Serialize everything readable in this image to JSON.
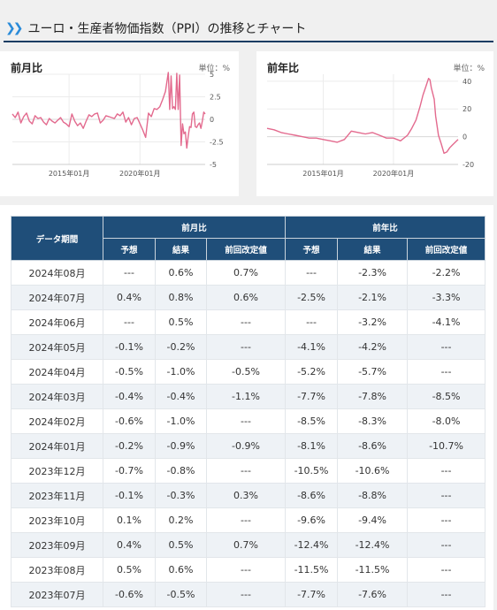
{
  "page": {
    "title": "ユーロ・生産者物価指数（PPI）の推移とチャート"
  },
  "chart_data": [
    {
      "type": "line",
      "title": "前月比",
      "unit_label": "単位：%",
      "x_tick_labels": [
        "2015年01月",
        "2020年01月"
      ],
      "x_ticks": [
        2015.0,
        2020.0
      ],
      "xlim": [
        2011.0,
        2024.6
      ],
      "ylim": [
        -5,
        5
      ],
      "y_ticks": [
        5,
        2.5,
        0,
        -2.5,
        -5
      ],
      "y_tick_labels": [
        "5",
        "2.5",
        "0",
        "-2.5",
        "-5"
      ],
      "grid": true,
      "color": "#e36a8e",
      "series": [
        {
          "x": [
            2011.0,
            2011.2,
            2011.4,
            2011.6,
            2011.8,
            2012.0,
            2012.2,
            2012.4,
            2012.6,
            2012.8,
            2013.0,
            2013.2,
            2013.4,
            2013.6,
            2013.8,
            2014.0,
            2014.2,
            2014.4,
            2014.6,
            2014.8,
            2015.0,
            2015.2,
            2015.4,
            2015.6,
            2015.8,
            2016.0,
            2016.2,
            2016.4,
            2016.6,
            2016.8,
            2017.0,
            2017.2,
            2017.4,
            2017.6,
            2017.8,
            2018.0,
            2018.2,
            2018.4,
            2018.6,
            2018.8,
            2019.0,
            2019.2,
            2019.4,
            2019.6,
            2019.8,
            2020.0,
            2020.2,
            2020.4,
            2020.6,
            2020.8,
            2021.0,
            2021.2,
            2021.4,
            2021.6,
            2021.8,
            2022.0,
            2022.1,
            2022.2,
            2022.3,
            2022.4,
            2022.5,
            2022.6,
            2022.7,
            2022.8,
            2022.9,
            2023.0,
            2023.1,
            2023.2,
            2023.3,
            2023.4,
            2023.5,
            2023.6,
            2023.7,
            2023.8,
            2023.9,
            2024.0,
            2024.1,
            2024.2,
            2024.3,
            2024.4,
            2024.5,
            2024.6
          ],
          "values": [
            0.6,
            0.2,
            0.8,
            -0.4,
            0.3,
            0.7,
            -0.2,
            -0.5,
            0.4,
            0.1,
            0.2,
            -0.3,
            -0.6,
            0.1,
            -0.2,
            -0.4,
            -0.1,
            0.2,
            -0.3,
            -0.5,
            -0.8,
            0.6,
            -0.2,
            -0.7,
            -0.4,
            -1.0,
            -0.2,
            0.5,
            0.3,
            0.6,
            0.7,
            -0.4,
            -0.1,
            0.4,
            0.3,
            0.2,
            0.1,
            0.6,
            0.4,
            0.8,
            -0.3,
            0.2,
            -0.6,
            0.1,
            0.2,
            -0.5,
            -1.2,
            -2.0,
            0.7,
            0.3,
            1.2,
            1.1,
            1.4,
            2.2,
            3.1,
            5.2,
            1.1,
            4.8,
            1.2,
            1.4,
            1.1,
            5.1,
            1.1,
            4.9,
            -2.9,
            -0.5,
            -1.6,
            -1.4,
            -3.2,
            -1.9,
            -0.8,
            -0.9,
            0.6,
            0.8,
            -0.8,
            -0.9,
            -0.6,
            -0.4,
            -1.0,
            -0.2,
            0.8,
            0.6
          ]
        }
      ]
    },
    {
      "type": "line",
      "title": "前年比",
      "unit_label": "単位：%",
      "x_tick_labels": [
        "2015年01月",
        "2020年01月"
      ],
      "x_ticks": [
        2015.0,
        2020.0
      ],
      "xlim": [
        2011.0,
        2024.6
      ],
      "ylim": [
        -20,
        45
      ],
      "y_ticks": [
        40,
        20,
        0,
        -20
      ],
      "y_tick_labels": [
        "40",
        "20",
        "0",
        "-20"
      ],
      "grid": true,
      "color": "#e36a8e",
      "series": [
        {
          "x": [
            2011.0,
            2011.5,
            2012.0,
            2012.5,
            2013.0,
            2013.5,
            2014.0,
            2014.5,
            2015.0,
            2015.5,
            2016.0,
            2016.5,
            2017.0,
            2017.5,
            2018.0,
            2018.5,
            2019.0,
            2019.5,
            2020.0,
            2020.5,
            2021.0,
            2021.3,
            2021.6,
            2021.9,
            2022.1,
            2022.3,
            2022.5,
            2022.6,
            2022.7,
            2022.9,
            2023.0,
            2023.2,
            2023.4,
            2023.6,
            2023.8,
            2024.0,
            2024.2,
            2024.4,
            2024.6
          ],
          "values": [
            6,
            5,
            3,
            2,
            1,
            0,
            -1,
            -1,
            -2,
            -3,
            -4,
            -2,
            4,
            3,
            2,
            3,
            1,
            -1,
            -1,
            -3,
            1,
            6,
            12,
            22,
            30,
            36,
            42,
            41,
            35,
            27,
            15,
            1,
            -5,
            -12,
            -11,
            -8,
            -6,
            -4,
            -2
          ]
        }
      ]
    }
  ],
  "table": {
    "header": {
      "period": "データ期間",
      "mom_group": "前月比",
      "yoy_group": "前年比",
      "sub": [
        "予想",
        "結果",
        "前回改定値",
        "予想",
        "結果",
        "前回改定値"
      ]
    },
    "rows": [
      [
        "2024年08月",
        "---",
        "0.6%",
        "0.7%",
        "---",
        "-2.3%",
        "-2.2%"
      ],
      [
        "2024年07月",
        "0.4%",
        "0.8%",
        "0.6%",
        "-2.5%",
        "-2.1%",
        "-3.3%"
      ],
      [
        "2024年06月",
        "---",
        "0.5%",
        "---",
        "---",
        "-3.2%",
        "-4.1%"
      ],
      [
        "2024年05月",
        "-0.1%",
        "-0.2%",
        "---",
        "-4.1%",
        "-4.2%",
        "---"
      ],
      [
        "2024年04月",
        "-0.5%",
        "-1.0%",
        "-0.5%",
        "-5.2%",
        "-5.7%",
        "---"
      ],
      [
        "2024年03月",
        "-0.4%",
        "-0.4%",
        "-1.1%",
        "-7.7%",
        "-7.8%",
        "-8.5%"
      ],
      [
        "2024年02月",
        "-0.6%",
        "-1.0%",
        "---",
        "-8.5%",
        "-8.3%",
        "-8.0%"
      ],
      [
        "2024年01月",
        "-0.2%",
        "-0.9%",
        "-0.9%",
        "-8.1%",
        "-8.6%",
        "-10.7%"
      ],
      [
        "2023年12月",
        "-0.7%",
        "-0.8%",
        "---",
        "-10.5%",
        "-10.6%",
        "---"
      ],
      [
        "2023年11月",
        "-0.1%",
        "-0.3%",
        "0.3%",
        "-8.6%",
        "-8.8%",
        "---"
      ],
      [
        "2023年10月",
        "0.1%",
        "0.2%",
        "---",
        "-9.6%",
        "-9.4%",
        "---"
      ],
      [
        "2023年09月",
        "0.4%",
        "0.5%",
        "0.7%",
        "-12.4%",
        "-12.4%",
        "---"
      ],
      [
        "2023年08月",
        "0.5%",
        "0.6%",
        "---",
        "-11.5%",
        "-11.5%",
        "---"
      ],
      [
        "2023年07月",
        "-0.6%",
        "-0.5%",
        "---",
        "-7.7%",
        "-7.6%",
        "---"
      ]
    ]
  }
}
